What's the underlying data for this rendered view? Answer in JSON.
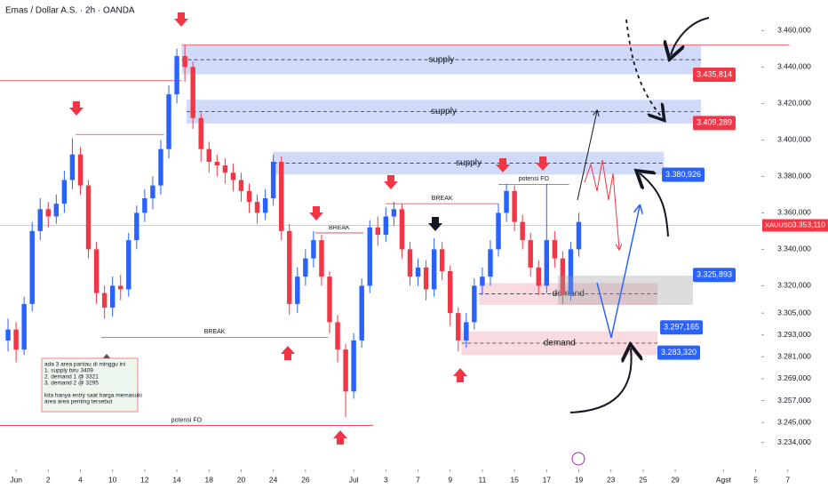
{
  "chart_data": {
    "type": "candlestick",
    "title": "Emas / Dollar A.S. · 2h · OANDA",
    "up_color": "#2962ff",
    "down_color": "#f23645",
    "xlim": [
      -1,
      50.5
    ],
    "ylim": [
      3228,
      3467
    ],
    "xticks": [
      {
        "value": 0,
        "label": "Jun"
      },
      2,
      4,
      {
        "value": 6,
        "label": "10"
      },
      {
        "value": 8,
        "label": "12"
      },
      {
        "value": 10,
        "label": "14"
      },
      {
        "value": 12,
        "label": "18"
      },
      {
        "value": 14,
        "label": "20"
      },
      {
        "value": 16,
        "label": "24"
      },
      {
        "value": 18,
        "label": "26"
      },
      {
        "value": 21,
        "label": "Jul"
      },
      {
        "value": 23,
        "label": "3"
      },
      {
        "value": 25,
        "label": "7"
      },
      {
        "value": 27,
        "label": "9"
      },
      {
        "value": 29,
        "label": "11"
      },
      {
        "value": 31,
        "label": "15"
      },
      {
        "value": 33,
        "label": "17"
      },
      {
        "value": 35,
        "label": "19"
      },
      {
        "value": 37,
        "label": "23"
      },
      {
        "value": 39,
        "label": "25"
      },
      {
        "value": 41,
        "label": "29"
      },
      {
        "value": 44,
        "label": "Agst"
      },
      {
        "value": 46,
        "label": "5"
      },
      {
        "value": 48,
        "label": "7"
      }
    ],
    "yticks": [
      {
        "value": 3460,
        "label": "3.460,000"
      },
      {
        "value": 3440,
        "label": "3.440,000"
      },
      {
        "value": 3420,
        "label": "3.420,000"
      },
      {
        "value": 3400,
        "label": "3.400,000"
      },
      {
        "value": 3380,
        "label": "3.380,000"
      },
      {
        "value": 3360,
        "label": "3.360,000"
      },
      {
        "value": 3340,
        "label": "3.340,000"
      },
      {
        "value": 3320,
        "label": "3.320,000"
      },
      {
        "value": 3305,
        "label": "3.305,000"
      },
      {
        "value": 3293,
        "label": "3.293,000"
      },
      {
        "value": 3281,
        "label": "3.281,000"
      },
      {
        "value": 3269,
        "label": "3.269,000"
      },
      {
        "value": 3257,
        "label": "3.257,000"
      },
      {
        "value": 3245,
        "label": "3.245,000"
      },
      {
        "value": 3234,
        "label": "3.234,000"
      }
    ],
    "x": [
      -0.5,
      0,
      0.5,
      1,
      1.5,
      2,
      2.5,
      3,
      3.5,
      4,
      4.5,
      5,
      5.5,
      6,
      6.5,
      7,
      7.5,
      8,
      8.5,
      9,
      9.5,
      10,
      10.5,
      11,
      11.5,
      12,
      12.5,
      13,
      13.5,
      14,
      14.5,
      15,
      15.5,
      16,
      16.5,
      17,
      17.5,
      18,
      18.5,
      19,
      19.5,
      20,
      20.5,
      21,
      21.5,
      22,
      22.5,
      23,
      23.5,
      24,
      24.5,
      25,
      25.5,
      26,
      26.5,
      27,
      27.5,
      28,
      28.5,
      29,
      29.5,
      30,
      30.5,
      31,
      31.5,
      32,
      32.5,
      33,
      33.5,
      34,
      34.5,
      35
    ],
    "open": [
      3290,
      3296,
      3285,
      3310,
      3350,
      3362,
      3358,
      3365,
      3378,
      3392,
      3375,
      3340,
      3316,
      3308,
      3320,
      3318,
      3345,
      3360,
      3368,
      3375,
      3395,
      3425,
      3446,
      3440,
      3412,
      3395,
      3388,
      3386,
      3382,
      3378,
      3372,
      3366,
      3360,
      3368,
      3388,
      3350,
      3310,
      3325,
      3335,
      3345,
      3325,
      3300,
      3285,
      3262,
      3290,
      3320,
      3352,
      3348,
      3358,
      3362,
      3340,
      3325,
      3330,
      3318,
      3340,
      3328,
      3305,
      3290,
      3300,
      3320,
      3325,
      3340,
      3360,
      3372,
      3355,
      3345,
      3330,
      3320,
      3345,
      3335,
      3315,
      3340
    ],
    "high": [
      3302,
      3300,
      3314,
      3355,
      3368,
      3366,
      3370,
      3383,
      3401,
      3396,
      3378,
      3344,
      3320,
      3325,
      3326,
      3349,
      3364,
      3373,
      3380,
      3400,
      3430,
      3450,
      3452,
      3443,
      3415,
      3399,
      3392,
      3390,
      3387,
      3382,
      3376,
      3370,
      3373,
      3392,
      3391,
      3354,
      3330,
      3340,
      3350,
      3348,
      3328,
      3304,
      3288,
      3294,
      3324,
      3356,
      3358,
      3363,
      3366,
      3365,
      3344,
      3335,
      3334,
      3346,
      3344,
      3331,
      3308,
      3305,
      3324,
      3330,
      3345,
      3365,
      3376,
      3375,
      3359,
      3349,
      3334,
      3376,
      3350,
      3339,
      3344,
      3360
    ],
    "low": [
      3284,
      3278,
      3282,
      3306,
      3345,
      3352,
      3354,
      3360,
      3373,
      3370,
      3335,
      3310,
      3302,
      3303,
      3312,
      3314,
      3340,
      3355,
      3362,
      3370,
      3390,
      3420,
      3432,
      3406,
      3388,
      3382,
      3380,
      3376,
      3372,
      3366,
      3360,
      3354,
      3356,
      3364,
      3345,
      3304,
      3305,
      3320,
      3330,
      3320,
      3294,
      3278,
      3248,
      3258,
      3286,
      3316,
      3342,
      3344,
      3353,
      3335,
      3320,
      3320,
      3312,
      3314,
      3323,
      3298,
      3284,
      3286,
      3296,
      3315,
      3320,
      3336,
      3355,
      3350,
      3340,
      3325,
      3315,
      3316,
      3330,
      3310,
      3312,
      3336
    ],
    "close": [
      3296,
      3285,
      3310,
      3350,
      3362,
      3358,
      3365,
      3378,
      3392,
      3375,
      3340,
      3316,
      3308,
      3320,
      3318,
      3345,
      3360,
      3368,
      3375,
      3395,
      3425,
      3446,
      3440,
      3412,
      3395,
      3388,
      3386,
      3382,
      3378,
      3372,
      3366,
      3360,
      3368,
      3388,
      3350,
      3310,
      3325,
      3335,
      3345,
      3325,
      3300,
      3285,
      3262,
      3290,
      3320,
      3352,
      3348,
      3358,
      3362,
      3340,
      3325,
      3330,
      3318,
      3340,
      3328,
      3305,
      3290,
      3300,
      3320,
      3325,
      3340,
      3360,
      3372,
      3355,
      3345,
      3330,
      3320,
      3345,
      3335,
      3315,
      3340,
      3355
    ],
    "zones": [
      {
        "label": "supply",
        "top": 3452,
        "bottom": 3436,
        "x0": 10.3,
        "x1": 42.6,
        "color": "#c9d5f8"
      },
      {
        "label": "supply",
        "top": 3422,
        "bottom": 3409,
        "x0": 10.6,
        "x1": 42.6,
        "color": "#c9d5f8"
      },
      {
        "label": "supply",
        "top": 3393.5,
        "bottom": 3381,
        "x0": 16,
        "x1": 40.3,
        "color": "#c9d5f8"
      },
      {
        "label": "demand",
        "top": 3321.5,
        "bottom": 3309.5,
        "x0": 28.8,
        "x1": 39.9,
        "color": "#f8d3d9"
      },
      {
        "label": "demand",
        "top": 3295,
        "bottom": 3282,
        "x0": 27.7,
        "x1": 39.9,
        "color": "#f8d3d9"
      }
    ],
    "lines": [
      {
        "value": 3452,
        "x0": 10.3,
        "x1": 48.1,
        "color": "#f23645"
      },
      {
        "value": 3432.5,
        "x0": -1,
        "x1": 10.3,
        "color": "#f23645"
      },
      {
        "value": 3403,
        "x0": 3.7,
        "x1": 9.2,
        "color": "#f23645"
      },
      {
        "value": 3291.7,
        "x0": 5.3,
        "x1": 19.4,
        "color": "#f23645",
        "label": "BREAK"
      },
      {
        "value": 3365,
        "x0": 23,
        "x1": 30,
        "color": "#f23645",
        "label": "BREAK"
      },
      {
        "value": 3349,
        "x0": 18.6,
        "x1": 21.6,
        "color": "#f23645",
        "label": "BREAK"
      },
      {
        "value": 3243.4,
        "x0": -1,
        "x1": 22.2,
        "color": "#f23645",
        "label": "potensi FO"
      },
      {
        "value": 3375.6,
        "x0": 30,
        "x1": 34.4,
        "color": "#f23645",
        "label": "potensi FO"
      },
      {
        "value": 3353.11,
        "x0": -1,
        "x1": 46.3,
        "color": "#f7a5ad"
      }
    ],
    "price_labels": [
      {
        "value": 3435.814,
        "label": "3.435,814",
        "color": "#f23645"
      },
      {
        "value": 3409.289,
        "label": "3.409,289",
        "color": "#f23645"
      },
      {
        "value": 3380.926,
        "label": "3.380,926",
        "color": "#2962ff"
      },
      {
        "value": 3325.893,
        "label": "3.325,893",
        "color": "#2962ff"
      },
      {
        "value": 3297.165,
        "label": "3.297,165",
        "color": "#2962ff"
      },
      {
        "value": 3283.32,
        "label": "3.283,320",
        "color": "#2962ff"
      }
    ],
    "last_price": {
      "symbol": "XAUUSD",
      "value": 3353.11,
      "label": "3.353,110"
    },
    "notes": [
      "ada 3 area pantau di minggu ini",
      "1. supply biru 3409",
      "2. demand 1 @ 3321",
      "3. demand 2 @ 3295",
      "kita hanya entry saat harga memasuki",
      "area area penting tersebut"
    ]
  }
}
